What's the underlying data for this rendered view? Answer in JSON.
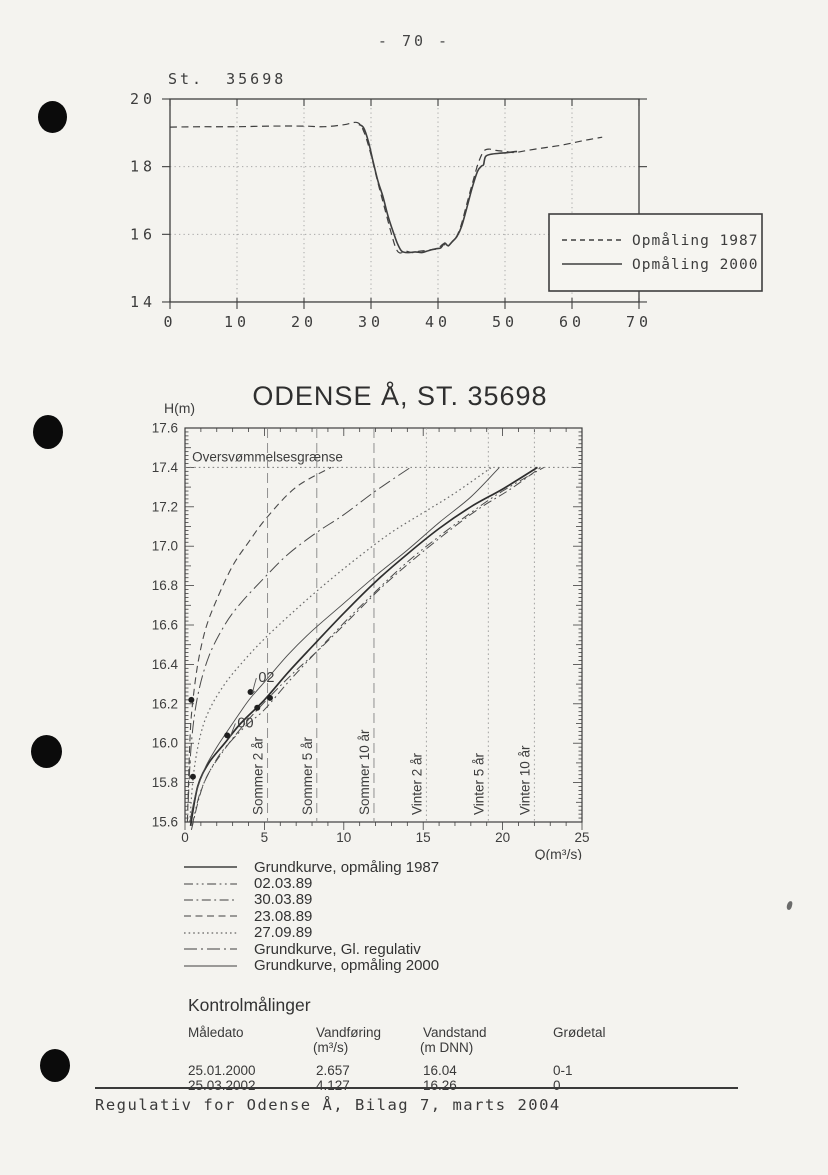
{
  "page": {
    "number": "- 70 -",
    "footer": "Regulativ for Odense Å, Bilag 7, marts 2004"
  },
  "colors": {
    "ink": "#3c3c3c",
    "axis": "#3f3f3f",
    "grid": "#a8a8a8",
    "ref_dashed": "#8a8a8a",
    "ref_dotted": "#9a9a9a",
    "paper": "#f4f3ef"
  },
  "chart_data": [
    {
      "id": "cross-section-profile",
      "type": "line",
      "title": "St. 35698",
      "xlabel": "",
      "ylabel": "",
      "xlim": [
        0,
        70
      ],
      "ylim": [
        14,
        20
      ],
      "xticks": [
        0,
        10,
        20,
        30,
        40,
        50,
        60,
        70
      ],
      "yticks": [
        14,
        16,
        18,
        20
      ],
      "grid": {
        "x": [
          10,
          20,
          30,
          40,
          50,
          60
        ],
        "y": [
          16,
          18
        ]
      },
      "legend": {
        "position": "right",
        "entries": [
          {
            "label": "Opmåling 1987",
            "style": "dashed"
          },
          {
            "label": "Opmåling 2000",
            "style": "solid"
          }
        ]
      },
      "series": [
        {
          "name": "Opmåling 1987",
          "style": "dashed",
          "width": 1.2,
          "points": [
            [
              0,
              19.17
            ],
            [
              5,
              19.18
            ],
            [
              10,
              19.18
            ],
            [
              15,
              19.2
            ],
            [
              20,
              19.2
            ],
            [
              23,
              19.18
            ],
            [
              26,
              19.24
            ],
            [
              28,
              19.3
            ],
            [
              29,
              19.0
            ],
            [
              30,
              18.35
            ],
            [
              31,
              17.55
            ],
            [
              32,
              16.8
            ],
            [
              33,
              16.05
            ],
            [
              33.7,
              15.6
            ],
            [
              34.3,
              15.45
            ],
            [
              35.2,
              15.5
            ],
            [
              36.2,
              15.46
            ],
            [
              37.2,
              15.5
            ],
            [
              38.2,
              15.52
            ],
            [
              39.2,
              15.55
            ],
            [
              40,
              15.58
            ],
            [
              40.8,
              15.72
            ],
            [
              41.3,
              15.62
            ],
            [
              42,
              15.75
            ],
            [
              42.8,
              15.95
            ],
            [
              43.5,
              16.3
            ],
            [
              44.3,
              16.9
            ],
            [
              45.2,
              17.55
            ],
            [
              46,
              18.1
            ],
            [
              46.8,
              18.45
            ],
            [
              47.6,
              18.52
            ],
            [
              48.6,
              18.48
            ],
            [
              50,
              18.45
            ],
            [
              51.5,
              18.42
            ],
            [
              53,
              18.47
            ],
            [
              55.5,
              18.55
            ],
            [
              58,
              18.62
            ],
            [
              60.5,
              18.72
            ],
            [
              62.5,
              18.8
            ],
            [
              64.5,
              18.87
            ]
          ]
        },
        {
          "name": "Opmåling 2000",
          "style": "solid",
          "width": 1.6,
          "points": [
            [
              28.2,
              19.25
            ],
            [
              28.9,
              19.15
            ],
            [
              29.6,
              18.75
            ],
            [
              30.2,
              18.25
            ],
            [
              31,
              17.6
            ],
            [
              31.8,
              17.1
            ],
            [
              32.6,
              16.5
            ],
            [
              33.3,
              16.08
            ],
            [
              33.9,
              15.75
            ],
            [
              34.6,
              15.5
            ],
            [
              35.6,
              15.46
            ],
            [
              36.6,
              15.48
            ],
            [
              37.6,
              15.46
            ],
            [
              38.6,
              15.52
            ],
            [
              39.6,
              15.57
            ],
            [
              40.4,
              15.6
            ],
            [
              41,
              15.74
            ],
            [
              41.5,
              15.66
            ],
            [
              42.1,
              15.78
            ],
            [
              42.8,
              15.93
            ],
            [
              43.5,
              16.22
            ],
            [
              44.3,
              16.78
            ],
            [
              45.1,
              17.38
            ],
            [
              45.9,
              17.86
            ],
            [
              46.5,
              18.02
            ],
            [
              46.8,
              18.06
            ],
            [
              47.1,
              18.3
            ],
            [
              48,
              18.37
            ],
            [
              49.5,
              18.4
            ],
            [
              51,
              18.43
            ],
            [
              51.8,
              18.45
            ]
          ]
        }
      ]
    },
    {
      "id": "rating-curves",
      "type": "line",
      "title": "ODENSE Å, ST. 35698",
      "ylabel": "H(m)",
      "xlabel": "Q(m³/s)",
      "xlim": [
        0,
        25
      ],
      "ylim": [
        15.6,
        17.6
      ],
      "xticks": [
        0,
        5,
        10,
        15,
        20,
        25
      ],
      "yticks": [
        17.6,
        17.4,
        17.2,
        17.0,
        16.8,
        16.6,
        16.4,
        16.2,
        16.0,
        15.8,
        15.6
      ],
      "flood_line": {
        "y": 17.4,
        "label": "Oversvømmelsesgrænse"
      },
      "ref_lines": [
        {
          "label": "Sommer 2 år",
          "x": 5.2,
          "style": "dashed"
        },
        {
          "label": "Sommer 5 år",
          "x": 8.3,
          "style": "dashed"
        },
        {
          "label": "Sommer 10 år",
          "x": 11.9,
          "style": "dashed"
        },
        {
          "label": "Vinter 2 år",
          "x": 15.2,
          "style": "dotted"
        },
        {
          "label": "Vinter 5 år",
          "x": 19.1,
          "style": "dotted"
        },
        {
          "label": "Vinter 10 år",
          "x": 22.0,
          "style": "dotted"
        }
      ],
      "series": [
        {
          "name": "Grundkurve, opmåling 1987",
          "style": "solid",
          "width": 1.7,
          "points": [
            [
              0.35,
              15.58
            ],
            [
              0.8,
              15.78
            ],
            [
              1.5,
              15.9
            ],
            [
              2.5,
              16.0
            ],
            [
              3.5,
              16.1
            ],
            [
              5,
              16.22
            ],
            [
              6.5,
              16.36
            ],
            [
              8,
              16.49
            ],
            [
              10,
              16.66
            ],
            [
              12,
              16.82
            ],
            [
              14,
              16.96
            ],
            [
              16,
              17.09
            ],
            [
              18,
              17.2
            ],
            [
              20,
              17.29
            ],
            [
              22.2,
              17.4
            ]
          ]
        },
        {
          "name": "02.03.89",
          "style": "dashdotdot",
          "width": 1.0,
          "points": [
            [
              0.45,
              15.58
            ],
            [
              1,
              15.76
            ],
            [
              2,
              15.92
            ],
            [
              3,
              16.02
            ],
            [
              4,
              16.1
            ],
            [
              5,
              16.17
            ],
            [
              6.5,
              16.31
            ],
            [
              8,
              16.44
            ],
            [
              10,
              16.61
            ],
            [
              12,
              16.77
            ],
            [
              14,
              16.92
            ],
            [
              16,
              17.05
            ],
            [
              18,
              17.17
            ],
            [
              20,
              17.28
            ],
            [
              22.6,
              17.4
            ]
          ]
        },
        {
          "name": "30.03.89",
          "style": "dashdot",
          "width": 1.0,
          "points": [
            [
              0.4,
              15.56
            ],
            [
              1.2,
              15.8
            ],
            [
              2.5,
              15.97
            ],
            [
              4,
              16.12
            ],
            [
              5.5,
              16.25
            ],
            [
              7,
              16.37
            ],
            [
              8.5,
              16.48
            ],
            [
              10.5,
              16.64
            ],
            [
              12.5,
              16.8
            ],
            [
              14.5,
              16.94
            ],
            [
              16.5,
              17.07
            ],
            [
              18.5,
              17.19
            ],
            [
              20.5,
              17.29
            ],
            [
              22.4,
              17.4
            ]
          ]
        },
        {
          "name": "23.08.89",
          "style": "dashed",
          "width": 1.1,
          "points": [
            [
              0.15,
              15.6
            ],
            [
              0.3,
              16.0
            ],
            [
              0.45,
              16.18
            ],
            [
              0.8,
              16.4
            ],
            [
              1.3,
              16.58
            ],
            [
              2,
              16.73
            ],
            [
              3,
              16.9
            ],
            [
              4,
              17.02
            ],
            [
              5.2,
              17.15
            ],
            [
              7,
              17.3
            ],
            [
              9.2,
              17.4
            ]
          ]
        },
        {
          "name": "27.09.89",
          "style": "dotted",
          "width": 1.2,
          "points": [
            [
              0.3,
              15.6
            ],
            [
              0.55,
              15.85
            ],
            [
              1,
              16.05
            ],
            [
              1.6,
              16.18
            ],
            [
              2.5,
              16.3
            ],
            [
              3.5,
              16.4
            ],
            [
              5,
              16.53
            ],
            [
              7,
              16.68
            ],
            [
              9,
              16.82
            ],
            [
              11,
              16.95
            ],
            [
              13,
              17.07
            ],
            [
              15,
              17.17
            ],
            [
              17,
              17.27
            ],
            [
              19.3,
              17.4
            ]
          ]
        },
        {
          "name": "Grundkurve, Gl. regulativ",
          "style": "longdashdot",
          "width": 1.0,
          "points": [
            [
              0.2,
              15.7
            ],
            [
              0.4,
              16.0
            ],
            [
              0.8,
              16.24
            ],
            [
              1.5,
              16.44
            ],
            [
              2.5,
              16.6
            ],
            [
              3.5,
              16.71
            ],
            [
              5,
              16.84
            ],
            [
              6.5,
              16.96
            ],
            [
              8.3,
              17.07
            ],
            [
              10,
              17.16
            ],
            [
              12,
              17.28
            ],
            [
              14.2,
              17.4
            ]
          ]
        },
        {
          "name": "Grundkurve, opmåling 2000",
          "style": "solid",
          "width": 0.9,
          "points": [
            [
              0.3,
              15.6
            ],
            [
              0.7,
              15.75
            ],
            [
              1.3,
              15.88
            ],
            [
              2,
              15.98
            ],
            [
              2.66,
              16.06
            ],
            [
              3.5,
              16.16
            ],
            [
              4.13,
              16.23
            ],
            [
              5,
              16.31
            ],
            [
              6.5,
              16.45
            ],
            [
              8,
              16.57
            ],
            [
              10,
              16.71
            ],
            [
              12,
              16.85
            ],
            [
              14,
              16.98
            ],
            [
              16,
              17.12
            ],
            [
              18,
              17.25
            ],
            [
              19.8,
              17.4
            ]
          ]
        }
      ],
      "measurements": {
        "points": [
          [
            0.4,
            16.22
          ],
          [
            0.5,
            15.83
          ],
          [
            2.657,
            16.04
          ],
          [
            4.127,
            16.26
          ],
          [
            4.55,
            16.18
          ],
          [
            5.35,
            16.23
          ]
        ],
        "labels": [
          {
            "text": "00",
            "x": 3.3,
            "y": 16.08,
            "anchor_point": [
              2.657,
              16.04
            ]
          },
          {
            "text": "02",
            "x": 4.62,
            "y": 16.31,
            "anchor_point": [
              4.127,
              16.26
            ]
          }
        ]
      },
      "legend_below": [
        {
          "label": "Grundkurve, opmåling 1987",
          "style": "solid",
          "width": 1.6
        },
        {
          "label": "02.03.89",
          "style": "dashdotdot",
          "width": 1.0
        },
        {
          "label": "30.03.89",
          "style": "dashdot",
          "width": 1.0
        },
        {
          "label": "23.08.89",
          "style": "dashed",
          "width": 1.0
        },
        {
          "label": "27.09.89",
          "style": "dotted",
          "width": 1.1
        },
        {
          "label": "Grundkurve, Gl. regulativ",
          "style": "longdashdot",
          "width": 1.0
        },
        {
          "label": "Grundkurve, opmåling 2000",
          "style": "solid",
          "width": 0.9
        }
      ]
    }
  ],
  "control_table": {
    "title": "Kontrolmålinger",
    "columns": [
      {
        "header": "Måledato",
        "unit": ""
      },
      {
        "header": "Vandføring",
        "unit": "(m³/s)"
      },
      {
        "header": "Vandstand",
        "unit": "(m DNN)"
      },
      {
        "header": "Grødetal",
        "unit": ""
      }
    ],
    "rows": [
      [
        "25.01.2000",
        "2.657",
        "16.04",
        "0-1"
      ],
      [
        "25.03.2002",
        "4.127",
        "16.26",
        "0"
      ]
    ]
  }
}
